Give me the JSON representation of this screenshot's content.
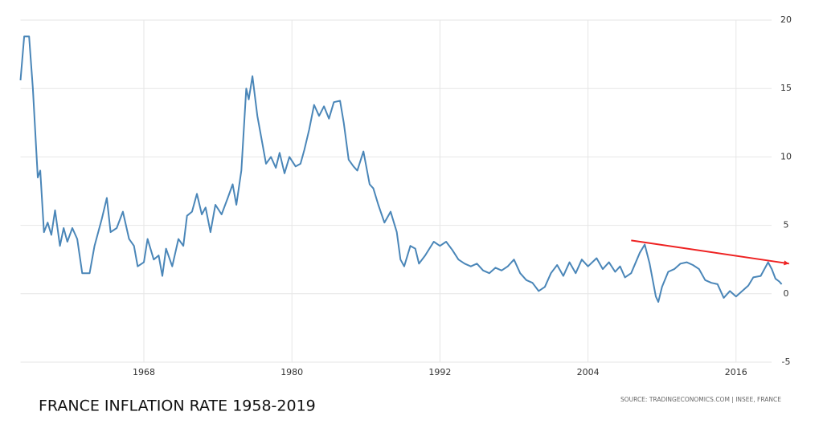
{
  "chart_data": {
    "type": "line",
    "title": "FRANCE INFLATION RATE 1958-2019",
    "source": "SOURCE: TRADINGECONOMICS.COM | INSEE, FRANCE",
    "x": [
      1958.0,
      1958.3,
      1958.7,
      1959.0,
      1959.4,
      1959.6,
      1959.9,
      1960.2,
      1960.5,
      1960.8,
      1961.2,
      1961.5,
      1961.8,
      1962.2,
      1962.6,
      1963.0,
      1963.6,
      1964.0,
      1964.6,
      1965.0,
      1965.3,
      1965.8,
      1966.3,
      1966.8,
      1967.2,
      1967.5,
      1968.0,
      1968.3,
      1968.8,
      1969.2,
      1969.5,
      1969.8,
      1970.3,
      1970.8,
      1971.2,
      1971.5,
      1971.9,
      1972.3,
      1972.7,
      1973.0,
      1973.4,
      1973.8,
      1974.3,
      1974.8,
      1975.2,
      1975.5,
      1975.9,
      1976.3,
      1976.5,
      1976.8,
      1977.2,
      1977.6,
      1977.9,
      1978.3,
      1978.7,
      1979.0,
      1979.4,
      1979.8,
      1980.3,
      1980.7,
      1981.0,
      1981.4,
      1981.8,
      1982.2,
      1982.6,
      1983.0,
      1983.4,
      1983.9,
      1984.2,
      1984.6,
      1985.0,
      1985.3,
      1985.8,
      1986.3,
      1986.6,
      1987.0,
      1987.5,
      1988.0,
      1988.5,
      1988.8,
      1989.1,
      1989.6,
      1990.0,
      1990.3,
      1990.8,
      1991.5,
      1992.0,
      1992.5,
      1993.0,
      1993.5,
      1994.0,
      1994.5,
      1995.0,
      1995.5,
      1996.0,
      1996.5,
      1997.0,
      1997.5,
      1998.0,
      1998.5,
      1999.0,
      1999.5,
      2000.0,
      2000.5,
      2001.0,
      2001.5,
      2002.0,
      2002.5,
      2003.0,
      2003.5,
      2004.0,
      2004.7,
      2005.2,
      2005.7,
      2006.2,
      2006.6,
      2007.0,
      2007.5,
      2008.2,
      2008.6,
      2009.0,
      2009.5,
      2009.7,
      2010.0,
      2010.5,
      2011.0,
      2011.5,
      2012.0,
      2012.5,
      2013.0,
      2013.5,
      2014.0,
      2014.5,
      2015.0,
      2015.5,
      2016.0,
      2016.5,
      2017.0,
      2017.4,
      2018.0,
      2018.6,
      2018.9,
      2019.2,
      2019.5,
      2019.7
    ],
    "series": [
      {
        "name": "France Inflation Rate",
        "color": "#4a86b8",
        "values": [
          15.6,
          18.8,
          18.8,
          15,
          8.5,
          9,
          4.5,
          5.2,
          4.3,
          6.1,
          3.5,
          4.8,
          3.8,
          4.8,
          4.0,
          1.5,
          1.5,
          3.5,
          5.5,
          7.0,
          4.5,
          4.8,
          6.0,
          4.0,
          3.5,
          2.0,
          2.3,
          4.0,
          2.5,
          2.8,
          1.3,
          3.3,
          2.0,
          4.0,
          3.5,
          5.7,
          6.0,
          7.3,
          5.8,
          6.3,
          4.5,
          6.5,
          5.8,
          7.0,
          8.0,
          6.5,
          9.0,
          15.0,
          14.2,
          15.9,
          13.0,
          11.0,
          9.5,
          10.0,
          9.2,
          10.3,
          8.8,
          10.0,
          9.3,
          9.5,
          10.5,
          12.0,
          13.8,
          13.0,
          13.7,
          12.8,
          14.0,
          14.1,
          12.5,
          9.8,
          9.3,
          9.0,
          10.4,
          8.0,
          7.7,
          6.5,
          5.2,
          6.0,
          4.5,
          2.5,
          2.0,
          3.5,
          3.3,
          2.2,
          2.8,
          3.8,
          3.5,
          3.8,
          3.2,
          2.5,
          2.2,
          2.0,
          2.2,
          1.7,
          1.5,
          1.9,
          1.7,
          2.0,
          2.5,
          1.5,
          1.0,
          0.8,
          0.2,
          0.5,
          1.5,
          2.1,
          1.3,
          2.3,
          1.5,
          2.5,
          2.0,
          2.6,
          1.8,
          2.3,
          1.6,
          2.0,
          1.2,
          1.5,
          3.0,
          3.6,
          2.2,
          -0.2,
          -0.6,
          0.5,
          1.6,
          1.8,
          2.2,
          2.3,
          2.1,
          1.8,
          1.0,
          0.8,
          0.7,
          -0.3,
          0.2,
          -0.2,
          0.2,
          0.6,
          1.2,
          1.3,
          2.3,
          1.8,
          1.1,
          0.9,
          0.7
        ]
      }
    ],
    "trend_line": {
      "x": [
        2007.5,
        2020.3
      ],
      "y": [
        3.9,
        2.2
      ],
      "color": "#ee2222"
    },
    "xlim": [
      1958,
      2020.5
    ],
    "xticks": [
      1968,
      1980,
      1992,
      2004,
      2016
    ],
    "ylim": [
      -5,
      20
    ],
    "yticks": [
      -5,
      0,
      5,
      10,
      15,
      20
    ],
    "grid": true
  }
}
